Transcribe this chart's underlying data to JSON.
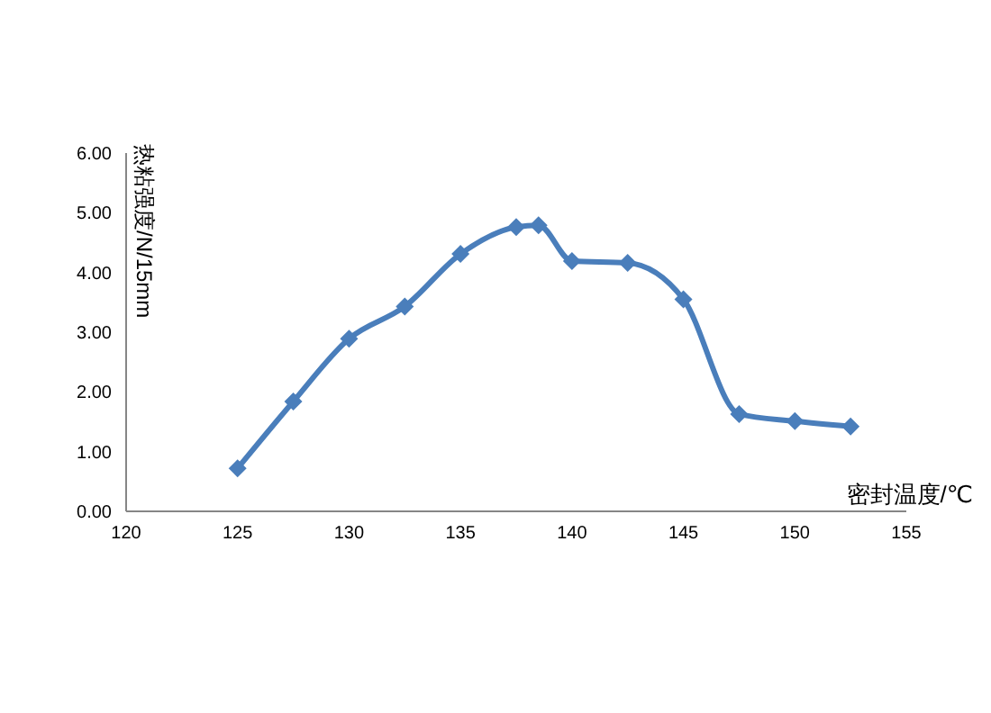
{
  "chart_data": {
    "type": "line",
    "xlabel": "密封温度/℃",
    "ylabel": "热粘强度/N/15mm",
    "x": [
      125,
      127.5,
      130,
      132.5,
      135,
      137.5,
      138.5,
      140,
      142.5,
      145,
      147.5,
      150,
      152.5
    ],
    "series": [
      {
        "color": "#4a7ebb",
        "values": [
          0.72,
          1.84,
          2.89,
          3.43,
          4.31,
          4.76,
          4.79,
          4.19,
          4.16,
          3.55,
          1.63,
          1.51,
          1.42
        ]
      }
    ],
    "xlim": [
      120,
      155
    ],
    "xticks": [
      120,
      125,
      130,
      135,
      140,
      145,
      150,
      155
    ],
    "ylim": [
      0,
      6
    ],
    "yticks": [
      {
        "value": 0,
        "label": "0.00"
      },
      {
        "value": 1,
        "label": "1.00"
      },
      {
        "value": 2,
        "label": "2.00"
      },
      {
        "value": 3,
        "label": "3.00"
      },
      {
        "value": 4,
        "label": "4.00"
      },
      {
        "value": 5,
        "label": "5.00"
      },
      {
        "value": 6,
        "label": "6.00"
      }
    ],
    "grid": false,
    "legend": false,
    "marker": "diamond",
    "line_style": "solid"
  }
}
